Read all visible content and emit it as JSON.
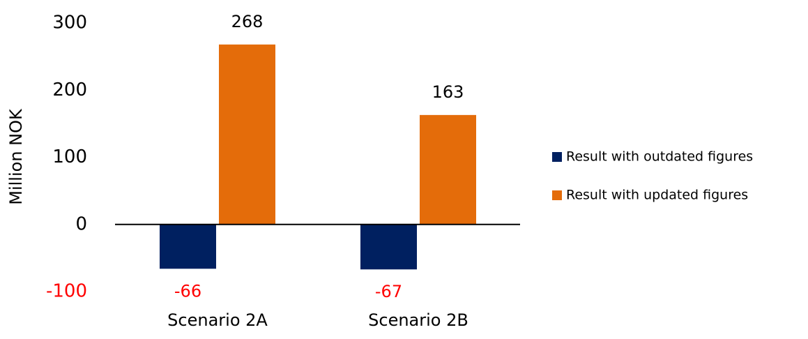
{
  "chart_data": {
    "type": "bar",
    "categories": [
      "Scenario 2A",
      "Scenario 2B"
    ],
    "series": [
      {
        "name": "Result with outdated figures",
        "color": "#002060",
        "values": [
          -66,
          -67
        ]
      },
      {
        "name": "Result with updated figures",
        "color": "#e46c0a",
        "values": [
          268,
          163
        ]
      }
    ],
    "y_label": "Million NOK",
    "ylim": [
      -100,
      300
    ],
    "yticks": [
      -100,
      0,
      100,
      200,
      300
    ],
    "grid": false,
    "legend": "right",
    "negative_color": "#ff0000"
  }
}
